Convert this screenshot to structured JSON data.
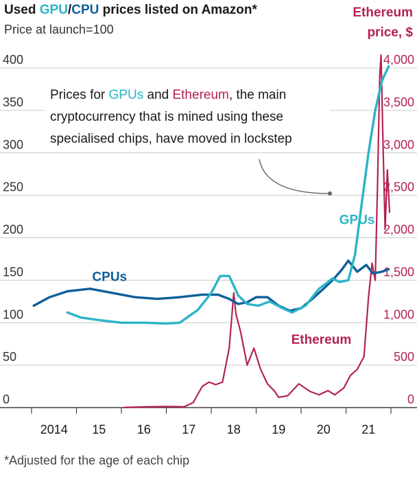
{
  "header": {
    "title_prefix": "Used ",
    "title_gpu": "GPU",
    "title_sep": "/",
    "title_cpu": "CPU",
    "title_suffix": " prices listed on Amazon*",
    "subtitle": "Price at launch=100",
    "right_title_1": "Ethereum",
    "right_title_2": "price, $"
  },
  "annotation": {
    "line1_a": "Prices for ",
    "line1_gpu": "GPUs",
    "line1_b": " and ",
    "line1_eth": "Ethereum",
    "line1_c": ", the main",
    "line2": "cryptocurrency that is mined using these",
    "line3": "specialised chips, have moved in lockstep"
  },
  "footnote": "*Adjusted for the age of each chip",
  "colors": {
    "gpu": "#2bb3c7",
    "cpu": "#0f5f99",
    "eth": "#b3234f",
    "grid": "#c9c9c9",
    "axis": "#444444"
  },
  "chart_data": {
    "type": "line",
    "x_tick_labels": [
      "2014",
      "15",
      "16",
      "17",
      "18",
      "19",
      "20",
      "21"
    ],
    "xlim": [
      2013.5,
      2022.0
    ],
    "left_axis": {
      "ylim": [
        0,
        400
      ],
      "ticks": [
        "0",
        "50",
        "100",
        "150",
        "200",
        "250",
        "300",
        "350",
        "400"
      ]
    },
    "right_axis": {
      "ylim": [
        0,
        4000
      ],
      "ticks": [
        "0",
        "500",
        "1,000",
        "1,500",
        "2,000",
        "2,500",
        "3,000",
        "3,500",
        "4,000"
      ]
    },
    "grid": true,
    "series": [
      {
        "name": "CPUs",
        "axis": "left",
        "x": [
          2013.55,
          2013.9,
          2014.3,
          2014.8,
          2015.3,
          2015.8,
          2016.3,
          2016.8,
          2017.3,
          2017.65,
          2017.9,
          2018.1,
          2018.3,
          2018.5,
          2018.75,
          2019.0,
          2019.25,
          2019.5,
          2019.75,
          2020.0,
          2020.2,
          2020.4,
          2020.55,
          2020.75,
          2020.95,
          2021.1,
          2021.3,
          2021.45
        ],
        "values": [
          120,
          130,
          137,
          140,
          135,
          130,
          128,
          130,
          133,
          133,
          128,
          122,
          124,
          130,
          130,
          120,
          114,
          117,
          128,
          140,
          150,
          162,
          173,
          160,
          168,
          158,
          160,
          163
        ]
      },
      {
        "name": "GPUs",
        "axis": "left",
        "x": [
          2014.3,
          2014.6,
          2015.0,
          2015.5,
          2016.0,
          2016.5,
          2016.8,
          2017.2,
          2017.5,
          2017.7,
          2017.9,
          2018.1,
          2018.3,
          2018.55,
          2018.8,
          2019.05,
          2019.3,
          2019.6,
          2019.9,
          2020.2,
          2020.35,
          2020.55,
          2020.7,
          2020.85,
          2021.0,
          2021.15,
          2021.3,
          2021.45
        ],
        "values": [
          112,
          106,
          103,
          100,
          100,
          99,
          100,
          115,
          135,
          155,
          155,
          132,
          122,
          120,
          125,
          118,
          112,
          120,
          140,
          152,
          148,
          150,
          180,
          240,
          300,
          350,
          385,
          402
        ]
      },
      {
        "name": "Ethereum",
        "axis": "right",
        "x": [
          2015.55,
          2016.0,
          2016.5,
          2016.9,
          2017.1,
          2017.3,
          2017.45,
          2017.6,
          2017.75,
          2017.9,
          2018.0,
          2018.05,
          2018.15,
          2018.3,
          2018.45,
          2018.6,
          2018.75,
          2018.9,
          2019.0,
          2019.2,
          2019.45,
          2019.7,
          2019.9,
          2020.1,
          2020.25,
          2020.45,
          2020.6,
          2020.75,
          2020.85,
          2020.9,
          2021.0,
          2021.08,
          2021.15,
          2021.2,
          2021.25,
          2021.28,
          2021.32,
          2021.37,
          2021.42,
          2021.47
        ],
        "values": [
          1,
          8,
          12,
          10,
          60,
          250,
          300,
          270,
          300,
          700,
          1350,
          1100,
          900,
          500,
          700,
          450,
          280,
          200,
          120,
          140,
          280,
          190,
          150,
          200,
          150,
          230,
          380,
          450,
          550,
          600,
          1300,
          1700,
          1500,
          2600,
          3900,
          4150,
          3200,
          2100,
          2800,
          2300
        ]
      }
    ],
    "series_labels": [
      "CPUs",
      "GPUs",
      "Ethereum"
    ]
  }
}
